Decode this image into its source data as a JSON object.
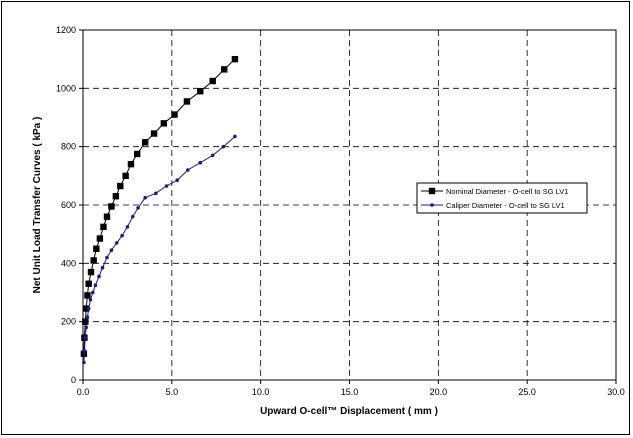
{
  "chart_data": {
    "type": "line",
    "xlabel": "Upward O-cell™ Displacement  ( mm )",
    "ylabel": "Net Unit Load Transfer Curves  ( kPa )",
    "xlim": [
      0,
      30
    ],
    "ylim": [
      0,
      1200
    ],
    "x_ticks": [
      "0.0",
      "5.0",
      "10.0",
      "15.0",
      "20.0",
      "25.0",
      "30.0"
    ],
    "y_ticks": [
      "0",
      "200",
      "400",
      "600",
      "800",
      "1000",
      "1200"
    ],
    "grid": "dashed",
    "legend_position": "right",
    "series": [
      {
        "name": "Nominal Diameter - O-cell to SG LV1",
        "color": "#000000",
        "marker": "square",
        "points": [
          [
            0.05,
            90
          ],
          [
            0.08,
            145
          ],
          [
            0.13,
            200
          ],
          [
            0.18,
            245
          ],
          [
            0.25,
            290
          ],
          [
            0.32,
            330
          ],
          [
            0.45,
            370
          ],
          [
            0.6,
            410
          ],
          [
            0.75,
            450
          ],
          [
            0.95,
            485
          ],
          [
            1.15,
            525
          ],
          [
            1.35,
            560
          ],
          [
            1.6,
            595
          ],
          [
            1.85,
            630
          ],
          [
            2.1,
            665
          ],
          [
            2.4,
            700
          ],
          [
            2.7,
            740
          ],
          [
            3.05,
            775
          ],
          [
            3.5,
            815
          ],
          [
            4.0,
            845
          ],
          [
            4.55,
            880
          ],
          [
            5.15,
            910
          ],
          [
            5.85,
            955
          ],
          [
            6.6,
            990
          ],
          [
            7.3,
            1025
          ],
          [
            7.95,
            1065
          ],
          [
            8.55,
            1100
          ]
        ]
      },
      {
        "name": "Caliper Diameter - O-cell to SG LV1",
        "color": "#1a1a8c",
        "marker": "circle",
        "points": [
          [
            0.05,
            60
          ],
          [
            0.08,
            100
          ],
          [
            0.13,
            145
          ],
          [
            0.18,
            180
          ],
          [
            0.25,
            215
          ],
          [
            0.32,
            245
          ],
          [
            0.42,
            275
          ],
          [
            0.55,
            300
          ],
          [
            0.7,
            325
          ],
          [
            0.9,
            355
          ],
          [
            1.1,
            385
          ],
          [
            1.35,
            420
          ],
          [
            1.6,
            445
          ],
          [
            1.9,
            470
          ],
          [
            2.2,
            495
          ],
          [
            2.5,
            525
          ],
          [
            2.8,
            560
          ],
          [
            3.1,
            590
          ],
          [
            3.5,
            625
          ],
          [
            4.1,
            640
          ],
          [
            4.7,
            665
          ],
          [
            5.3,
            685
          ],
          [
            5.9,
            720
          ],
          [
            6.6,
            745
          ],
          [
            7.3,
            770
          ],
          [
            7.9,
            800
          ],
          [
            8.55,
            835
          ]
        ]
      }
    ]
  }
}
